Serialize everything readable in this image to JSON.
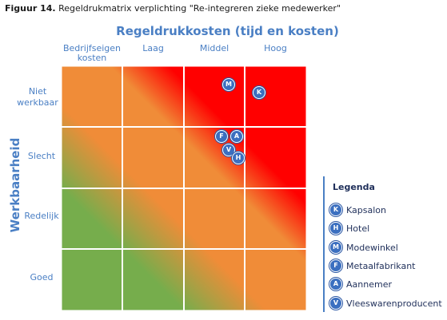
{
  "caption": {
    "label": "Figuur 14.",
    "text": "Regeldrukmatrix verplichting \"Re-integreren zieke medewerker\""
  },
  "x_axis": {
    "title": "Regeldrukkosten (tijd en kosten)",
    "columns": [
      "Bedrijfseigen kosten",
      "Laag",
      "Middel",
      "Hoog"
    ]
  },
  "y_axis": {
    "title": "Werkbaarheid",
    "rows": [
      "Niet werkbaar",
      "Slecht",
      "Redelijk",
      "Goed"
    ]
  },
  "colors": {
    "green": "#76ad4c",
    "orange": "#f08c38",
    "red": "#ff0000",
    "badge": "#3b6fc0",
    "label_blue": "#4a7fc4"
  },
  "markers": [
    {
      "letter": "M",
      "name": "Modewinkel"
    },
    {
      "letter": "K",
      "name": "Kapsalon"
    },
    {
      "letter": "F",
      "name": "Metaalfabrikant"
    },
    {
      "letter": "A",
      "name": "Aannemer"
    },
    {
      "letter": "V",
      "name": "Vleeswarenproducent"
    },
    {
      "letter": "H",
      "name": "Hotel"
    }
  ],
  "legend": {
    "title": "Legenda",
    "items": [
      {
        "letter": "K",
        "label": "Kapsalon"
      },
      {
        "letter": "H",
        "label": "Hotel"
      },
      {
        "letter": "M",
        "label": "Modewinkel"
      },
      {
        "letter": "F",
        "label": "Metaalfabrikant"
      },
      {
        "letter": "A",
        "label": "Aannemer"
      },
      {
        "letter": "V",
        "label": "Vleeswarenproducent"
      }
    ]
  }
}
